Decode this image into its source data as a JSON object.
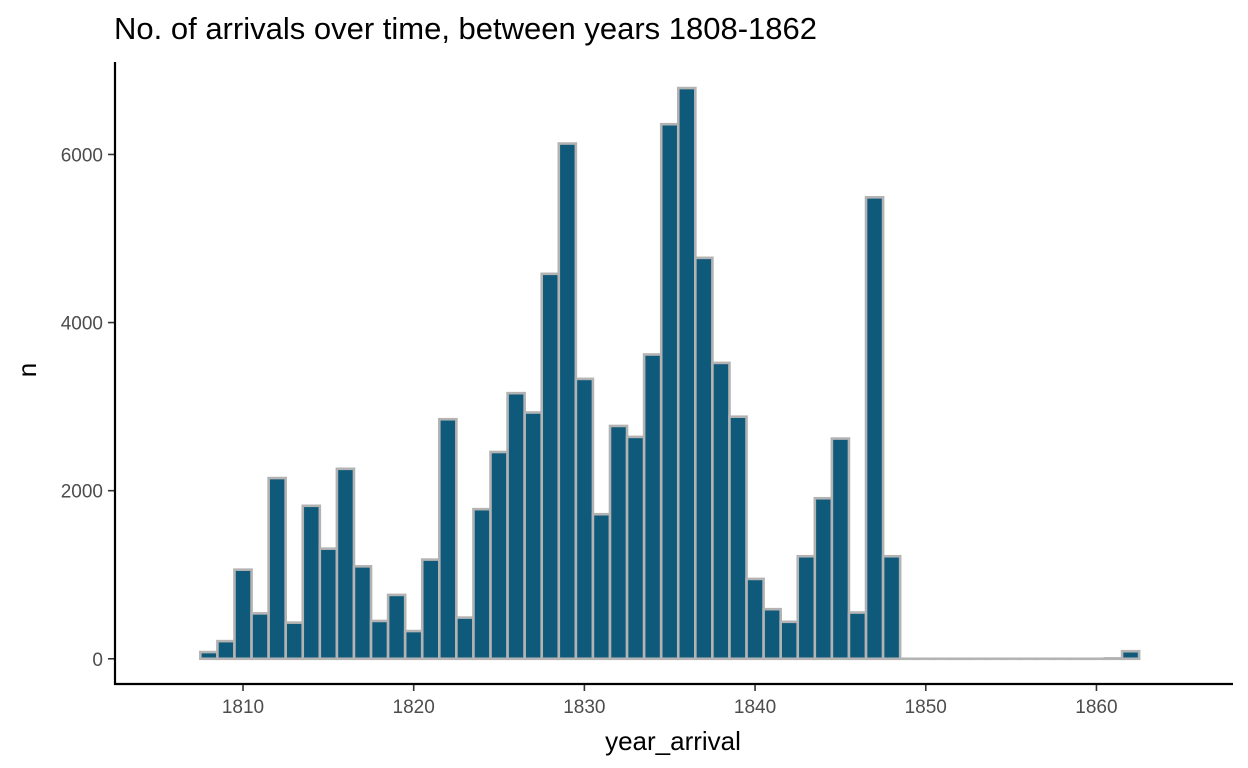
{
  "chart_data": {
    "type": "bar",
    "title": "No. of arrivals over time, between years 1808-1862",
    "xlabel": "year_arrival",
    "ylabel": "n",
    "x": [
      1808,
      1809,
      1810,
      1811,
      1812,
      1813,
      1814,
      1815,
      1816,
      1817,
      1818,
      1819,
      1820,
      1821,
      1822,
      1823,
      1824,
      1825,
      1826,
      1827,
      1828,
      1829,
      1830,
      1831,
      1832,
      1833,
      1834,
      1835,
      1836,
      1837,
      1838,
      1839,
      1840,
      1841,
      1842,
      1843,
      1844,
      1845,
      1846,
      1847,
      1848,
      1849,
      1850,
      1851,
      1852,
      1853,
      1854,
      1855,
      1856,
      1857,
      1858,
      1859,
      1860,
      1861,
      1862
    ],
    "values": [
      80,
      210,
      1060,
      540,
      2150,
      430,
      1820,
      1310,
      2260,
      1100,
      450,
      760,
      330,
      1180,
      2850,
      490,
      1780,
      2460,
      3160,
      2930,
      4580,
      6130,
      3330,
      1720,
      2770,
      2640,
      3620,
      6360,
      6790,
      4770,
      3520,
      2880,
      950,
      590,
      440,
      1220,
      1910,
      2620,
      550,
      5490,
      1220,
      0,
      0,
      0,
      0,
      0,
      0,
      0,
      0,
      0,
      0,
      0,
      0,
      5,
      90
    ],
    "x_ticks": [
      "1810",
      "1820",
      "1830",
      "1840",
      "1850",
      "1860"
    ],
    "y_ticks": [
      "0",
      "2000",
      "4000",
      "6000"
    ],
    "xlim": [
      1802.5,
      1868
    ],
    "ylim": [
      -300,
      7100
    ],
    "bar_width": 1,
    "grid": false,
    "colors": {
      "fill": "#0f5a7a",
      "outline": "#b3b3b3"
    }
  }
}
